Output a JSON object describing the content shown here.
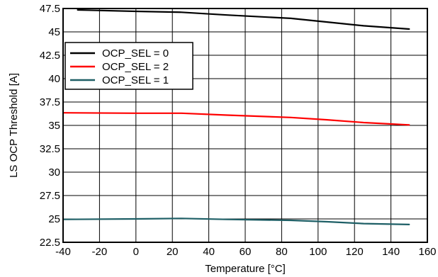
{
  "chart_data": {
    "type": "line",
    "title": "",
    "xlabel": "Temperature [°C]",
    "ylabel": "LS OCP Threshold [A]",
    "xlim": [
      -40,
      160
    ],
    "ylim": [
      22.5,
      47.5
    ],
    "xticks": [
      -40,
      -20,
      0,
      20,
      40,
      60,
      80,
      100,
      120,
      140,
      160
    ],
    "yticks": [
      "22.5",
      "25",
      "27.5",
      "30",
      "32.5",
      "35",
      "37.5",
      "40",
      "42.5",
      "45",
      "47.5"
    ],
    "grid": true,
    "legend": "top-left",
    "series": [
      {
        "name": "OCP_SEL = 0",
        "color": "#000000",
        "x": [
          -32,
          0,
          25,
          50,
          85,
          105,
          125,
          150
        ],
        "y": [
          47.35,
          47.2,
          47.1,
          46.8,
          46.45,
          46.05,
          45.65,
          45.3
        ]
      },
      {
        "name": "OCP_SEL = 2",
        "color": "#ff0000",
        "x": [
          -40,
          0,
          25,
          50,
          85,
          105,
          125,
          150
        ],
        "y": [
          36.35,
          36.3,
          36.3,
          36.1,
          35.85,
          35.6,
          35.3,
          35.05
        ]
      },
      {
        "name": "OCP_SEL = 1",
        "color": "#1e5f66",
        "x": [
          -40,
          0,
          25,
          50,
          85,
          105,
          125,
          150
        ],
        "y": [
          24.95,
          25.0,
          25.05,
          24.95,
          24.85,
          24.7,
          24.5,
          24.4
        ]
      }
    ]
  }
}
